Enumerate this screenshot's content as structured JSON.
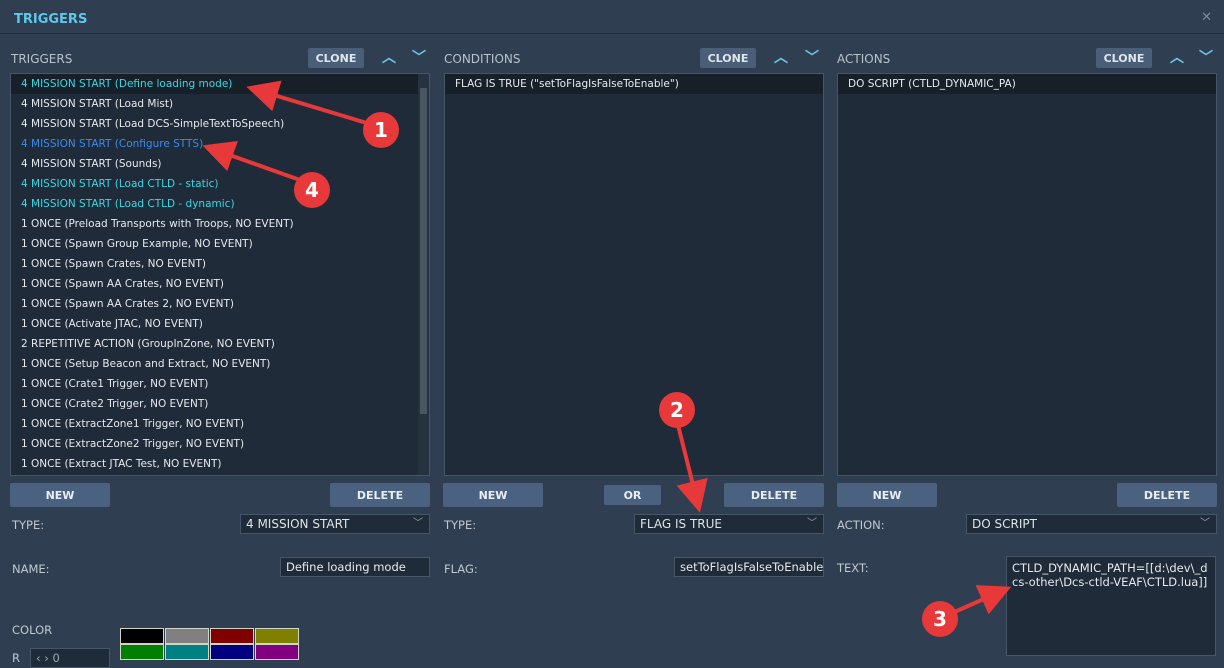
{
  "window": {
    "title": "TRIGGERS",
    "close_icon": "close-icon"
  },
  "triggers": {
    "header": "TRIGGERS",
    "clone": "CLONE",
    "new": "NEW",
    "delete": "DELETE",
    "items": [
      {
        "label": "4 MISSION START (Define loading mode)",
        "color": "#3ed6e0",
        "selected": true
      },
      {
        "label": "4 MISSION START (Load Mist)",
        "color": "#e6eaee"
      },
      {
        "label": "4 MISSION START (Load DCS-SimpleTextToSpeech)",
        "color": "#e6eaee"
      },
      {
        "label": "4 MISSION START (Configure STTS)",
        "color": "#3c8cec"
      },
      {
        "label": "4 MISSION START (Sounds)",
        "color": "#e6eaee"
      },
      {
        "label": "4 MISSION START (Load CTLD - static)",
        "color": "#3ed6e0"
      },
      {
        "label": "4 MISSION START (Load CTLD - dynamic)",
        "color": "#3ed6e0"
      },
      {
        "label": "1 ONCE (Preload Transports with Troops, NO EVENT)",
        "color": "#e6eaee"
      },
      {
        "label": "1 ONCE (Spawn Group Example, NO EVENT)",
        "color": "#e6eaee"
      },
      {
        "label": "1 ONCE (Spawn Crates, NO EVENT)",
        "color": "#e6eaee"
      },
      {
        "label": "1 ONCE (Spawn AA Crates, NO EVENT)",
        "color": "#e6eaee"
      },
      {
        "label": "1 ONCE (Spawn AA Crates 2, NO EVENT)",
        "color": "#e6eaee"
      },
      {
        "label": "1 ONCE (Activate JTAC, NO EVENT)",
        "color": "#e6eaee"
      },
      {
        "label": "2 REPETITIVE ACTION (GroupInZone, NO EVENT)",
        "color": "#e6eaee"
      },
      {
        "label": "1 ONCE (Setup Beacon and Extract, NO EVENT)",
        "color": "#e6eaee"
      },
      {
        "label": "1 ONCE (Crate1 Trigger, NO EVENT)",
        "color": "#e6eaee"
      },
      {
        "label": "1 ONCE (Crate2 Trigger, NO EVENT)",
        "color": "#e6eaee"
      },
      {
        "label": "1 ONCE (ExtractZone1 Trigger, NO EVENT)",
        "color": "#e6eaee"
      },
      {
        "label": "1 ONCE (ExtractZone2 Trigger, NO EVENT)",
        "color": "#e6eaee"
      },
      {
        "label": "1 ONCE (Extract JTAC Test, NO EVENT)",
        "color": "#e6eaee"
      }
    ],
    "type_label": "TYPE:",
    "type_value": "4 MISSION START",
    "name_label": "NAME:",
    "name_value": "Define loading mode",
    "color_label": "COLOR",
    "r_label": "R",
    "r_value": "0",
    "swatches": [
      "#000000",
      "#808080",
      "#800000",
      "#808000",
      "#008000",
      "#008080",
      "#000080",
      "#800080"
    ]
  },
  "conditions": {
    "header": "CONDITIONS",
    "clone": "CLONE",
    "new": "NEW",
    "or": "OR",
    "delete": "DELETE",
    "items": [
      {
        "label": "FLAG IS TRUE (\"setToFlagIsFalseToEnable\")"
      }
    ],
    "type_label": "TYPE:",
    "type_value": "FLAG IS TRUE",
    "flag_label": "FLAG:",
    "flag_value": "setToFlagIsFalseToEnable"
  },
  "actions": {
    "header": "ACTIONS",
    "clone": "CLONE",
    "new": "NEW",
    "delete": "DELETE",
    "items": [
      {
        "label": "DO SCRIPT (CTLD_DYNAMIC_PA)"
      }
    ],
    "action_label": "ACTION:",
    "action_value": "DO SCRIPT",
    "text_label": "TEXT:",
    "text_value": "CTLD_DYNAMIC_PATH=[[d:\\dev\\_dcs-other\\Dcs-ctld-VEAF\\CTLD.lua]]"
  },
  "annotations": {
    "color": "#e8393a",
    "markers": [
      "1",
      "2",
      "3",
      "4"
    ]
  }
}
